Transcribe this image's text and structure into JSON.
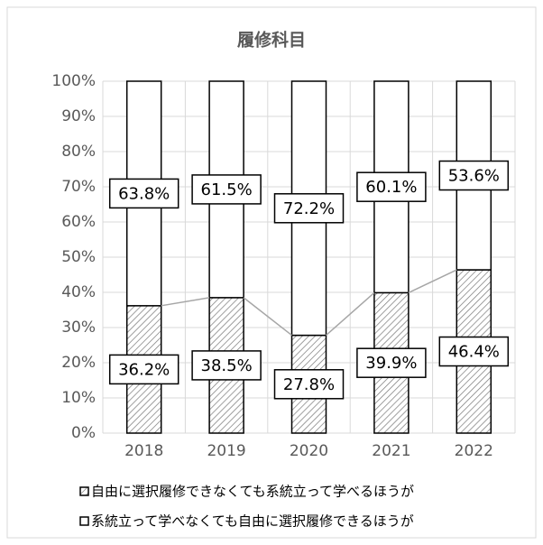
{
  "chart_data": {
    "type": "stacked_bar",
    "title": "履修科目",
    "categories": [
      "2018",
      "2019",
      "2020",
      "2021",
      "2022"
    ],
    "series": [
      {
        "name": "自由に選択履修できなくても系統立って学べるほうが",
        "color": "#ffffff",
        "pattern": "hatch",
        "values": [
          36.2,
          38.5,
          27.8,
          39.9,
          46.4
        ],
        "value_labels": [
          "36.2%",
          "38.5%",
          "27.8%",
          "39.9%",
          "46.4%"
        ]
      },
      {
        "name": "系統立って学べなくても自由に選択履修できるほうが",
        "color": "#ffffff",
        "values": [
          63.8,
          61.5,
          72.2,
          60.1,
          53.6
        ],
        "value_labels": [
          "63.8%",
          "61.5%",
          "72.2%",
          "60.1%",
          "53.6%"
        ]
      }
    ],
    "ylim": [
      0,
      100
    ],
    "yticks": [
      {
        "value": 0,
        "label": "0%"
      },
      {
        "value": 10,
        "label": "10%"
      },
      {
        "value": 20,
        "label": "20%"
      },
      {
        "value": 30,
        "label": "30%"
      },
      {
        "value": 40,
        "label": "40%"
      },
      {
        "value": 50,
        "label": "50%"
      },
      {
        "value": 60,
        "label": "60%"
      },
      {
        "value": 70,
        "label": "70%"
      },
      {
        "value": 80,
        "label": "80%"
      },
      {
        "value": 90,
        "label": "90%"
      },
      {
        "value": 100,
        "label": "100%"
      }
    ],
    "grid": true
  }
}
